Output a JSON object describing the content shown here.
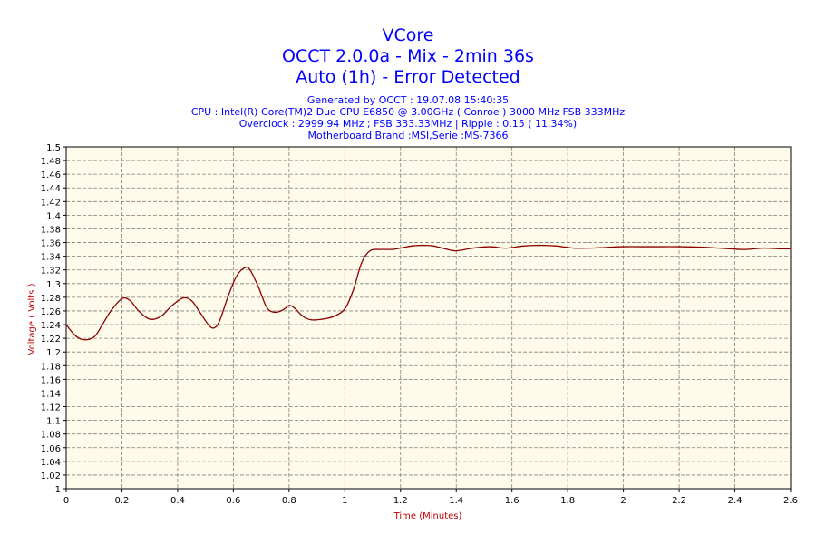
{
  "colors": {
    "title": "#0000ff",
    "plot_bg": "#fffbeb",
    "series": "#8b0000",
    "axis_label": "#c00000",
    "grid": "#808080"
  },
  "chart_data": {
    "type": "line",
    "title": "VCore",
    "subtitles": [
      "OCCT 2.0.0a - Mix - 2min 36s",
      "Auto (1h) - Error Detected"
    ],
    "info_lines": [
      "Generated by OCCT : 19.07.08 15:40:35",
      "CPU : Intel(R) Core(TM)2 Duo CPU E6850 @ 3.00GHz ( Conroe ) 3000 MHz FSB 333MHz",
      "Overclock : 2999.94 MHz ; FSB 333.33MHz | Ripple : 0.15 ( 11.34%)",
      "Motherboard Brand :MSI,Serie :MS-7366"
    ],
    "xlabel": "Time (Minutes)",
    "ylabel": "Voltage ( Volts )",
    "xlim": [
      0,
      2.6
    ],
    "ylim": [
      1,
      1.5
    ],
    "x_ticks": [
      "0",
      "0.2",
      "0.4",
      "0.6",
      "0.8",
      "1",
      "1.2",
      "1.4",
      "1.6",
      "1.8",
      "2",
      "2.2",
      "2.4",
      "2.6"
    ],
    "y_ticks": [
      "1",
      "1.02",
      "1.04",
      "1.06",
      "1.08",
      "1.1",
      "1.12",
      "1.14",
      "1.16",
      "1.18",
      "1.2",
      "1.22",
      "1.24",
      "1.26",
      "1.28",
      "1.3",
      "1.32",
      "1.34",
      "1.36",
      "1.38",
      "1.4",
      "1.42",
      "1.44",
      "1.46",
      "1.48",
      "1.5"
    ],
    "grid": true,
    "series": [
      {
        "x": [
          0,
          0.03,
          0.06,
          0.1,
          0.13,
          0.16,
          0.2,
          0.23,
          0.26,
          0.3,
          0.34,
          0.38,
          0.42,
          0.45,
          0.48,
          0.51,
          0.53,
          0.55,
          0.58,
          0.61,
          0.64,
          0.66,
          0.69,
          0.72,
          0.75,
          0.78,
          0.8,
          0.82,
          0.85,
          0.88,
          0.92,
          0.96,
          1.0,
          1.03,
          1.06,
          1.09,
          1.13,
          1.17,
          1.2,
          1.24,
          1.28,
          1.32,
          1.36,
          1.4,
          1.46,
          1.52,
          1.58,
          1.64,
          1.7,
          1.76,
          1.82,
          1.88,
          1.94,
          2.0,
          2.1,
          2.2,
          2.3,
          2.38,
          2.44,
          2.5,
          2.56,
          2.6
        ],
        "y": [
          1.24,
          1.225,
          1.218,
          1.222,
          1.24,
          1.26,
          1.278,
          1.275,
          1.26,
          1.248,
          1.252,
          1.268,
          1.279,
          1.275,
          1.258,
          1.24,
          1.235,
          1.245,
          1.28,
          1.31,
          1.323,
          1.32,
          1.295,
          1.265,
          1.258,
          1.262,
          1.268,
          1.264,
          1.252,
          1.247,
          1.248,
          1.252,
          1.263,
          1.29,
          1.33,
          1.348,
          1.35,
          1.35,
          1.352,
          1.355,
          1.356,
          1.355,
          1.351,
          1.348,
          1.352,
          1.354,
          1.352,
          1.355,
          1.356,
          1.355,
          1.352,
          1.352,
          1.353,
          1.354,
          1.354,
          1.354,
          1.353,
          1.351,
          1.35,
          1.352,
          1.351,
          1.351
        ]
      }
    ]
  }
}
